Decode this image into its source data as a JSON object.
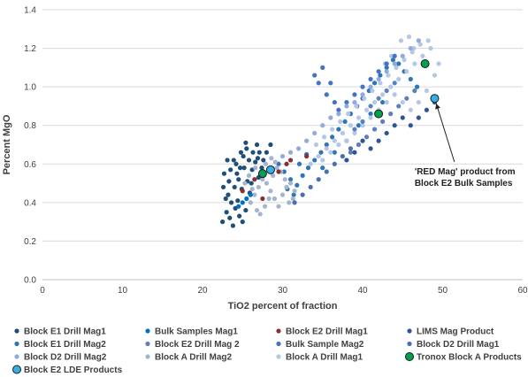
{
  "chart_data": {
    "type": "scatter",
    "title": "",
    "xlabel": "TiO2 percent of fraction",
    "ylabel": "Percent MgO",
    "xlim": [
      0,
      60
    ],
    "ylim": [
      0,
      1.4
    ],
    "x_ticks": [
      0,
      10,
      20,
      30,
      40,
      50,
      60
    ],
    "y_ticks": [
      0.0,
      0.2,
      0.4,
      0.6,
      0.8,
      1.0,
      1.2,
      1.4
    ],
    "x_tick_labels": [
      "0",
      "10",
      "20",
      "30",
      "40",
      "50",
      "60"
    ],
    "y_tick_labels": [
      "0.0",
      "0.2",
      "0.4",
      "0.6",
      "0.8",
      "1.0",
      "1.2",
      "1.4"
    ],
    "grid": "horizontal",
    "legend_position": "bottom",
    "annotation": {
      "lines": [
        "'RED Mag' product from",
        "Block E2 Bulk Samples"
      ],
      "target": {
        "x": 49,
        "y": 0.94
      },
      "text_at": {
        "x": 46.5,
        "y": 0.56
      }
    },
    "series": [
      {
        "name": "Block E1 Drill Mag1",
        "color": "#1f4e79",
        "size": 2.6,
        "outline": false,
        "points": [
          [
            22.5,
            0.3
          ],
          [
            23.0,
            0.35
          ],
          [
            23.4,
            0.32
          ],
          [
            23.8,
            0.28
          ],
          [
            24.1,
            0.37
          ],
          [
            24.6,
            0.33
          ],
          [
            25.0,
            0.3
          ],
          [
            25.4,
            0.36
          ],
          [
            23.2,
            0.44
          ],
          [
            24.0,
            0.48
          ],
          [
            24.5,
            0.52
          ],
          [
            25.2,
            0.58
          ],
          [
            25.8,
            0.62
          ],
          [
            26.3,
            0.66
          ],
          [
            26.8,
            0.7
          ],
          [
            27.1,
            0.66
          ],
          [
            27.6,
            0.62
          ],
          [
            26.2,
            0.57
          ],
          [
            25.6,
            0.51
          ],
          [
            24.9,
            0.47
          ],
          [
            24.3,
            0.55
          ],
          [
            23.9,
            0.62
          ],
          [
            24.8,
            0.66
          ],
          [
            25.4,
            0.71
          ],
          [
            26.6,
            0.61
          ],
          [
            27.4,
            0.58
          ],
          [
            28.0,
            0.66
          ],
          [
            28.5,
            0.7
          ],
          [
            23.6,
            0.4
          ],
          [
            22.9,
            0.42
          ],
          [
            24.4,
            0.41
          ],
          [
            25.9,
            0.45
          ],
          [
            26.1,
            0.5
          ],
          [
            27.0,
            0.53
          ],
          [
            25.1,
            0.64
          ],
          [
            24.2,
            0.6
          ],
          [
            23.5,
            0.57
          ],
          [
            23.1,
            0.62
          ],
          [
            22.7,
            0.55
          ],
          [
            24.7,
            0.58
          ],
          [
            26.9,
            0.63
          ],
          [
            25.5,
            0.68
          ],
          [
            23.3,
            0.51
          ],
          [
            22.6,
            0.48
          ]
        ]
      },
      {
        "name": "Block E1 Drill Mag2",
        "color": "#2e75b6",
        "size": 2.6,
        "outline": false,
        "points": [
          [
            29.5,
            0.6
          ],
          [
            30.2,
            0.56
          ],
          [
            31.0,
            0.52
          ],
          [
            31.8,
            0.49
          ],
          [
            32.5,
            0.54
          ],
          [
            33.2,
            0.58
          ],
          [
            34.0,
            0.62
          ],
          [
            34.8,
            0.66
          ],
          [
            35.5,
            0.7
          ],
          [
            36.2,
            0.74
          ],
          [
            37.0,
            0.78
          ],
          [
            37.8,
            0.82
          ],
          [
            38.5,
            0.86
          ],
          [
            39.3,
            0.9
          ],
          [
            40.0,
            0.94
          ],
          [
            40.8,
            0.98
          ],
          [
            41.5,
            1.02
          ],
          [
            42.2,
            1.06
          ],
          [
            43.0,
            1.1
          ],
          [
            43.8,
            1.14
          ],
          [
            44.5,
            1.12
          ],
          [
            45.2,
            1.08
          ],
          [
            46.0,
            1.04
          ],
          [
            46.8,
            1.0
          ],
          [
            30.6,
            0.47
          ],
          [
            31.4,
            0.44
          ],
          [
            32.1,
            0.6
          ],
          [
            33.0,
            0.65
          ],
          [
            35.0,
            0.58
          ],
          [
            36.5,
            0.66
          ],
          [
            38.0,
            0.72
          ],
          [
            39.5,
            0.8
          ],
          [
            41.0,
            0.86
          ],
          [
            42.5,
            0.92
          ]
        ]
      },
      {
        "name": "Block A Drill Mag2",
        "color": "#a5b4d0",
        "size": 2.6,
        "outline": false,
        "points": [
          [
            26.0,
            0.4
          ],
          [
            26.5,
            0.44
          ],
          [
            27.0,
            0.48
          ],
          [
            27.5,
            0.52
          ],
          [
            28.0,
            0.5
          ],
          [
            28.5,
            0.46
          ],
          [
            29.0,
            0.42
          ],
          [
            29.5,
            0.38
          ],
          [
            30.0,
            0.44
          ],
          [
            30.5,
            0.48
          ],
          [
            31.0,
            0.5
          ],
          [
            31.5,
            0.46
          ],
          [
            26.8,
            0.36
          ],
          [
            27.2,
            0.34
          ],
          [
            27.8,
            0.38
          ],
          [
            28.3,
            0.42
          ],
          [
            28.8,
            0.54
          ],
          [
            29.3,
            0.58
          ],
          [
            29.8,
            0.56
          ],
          [
            30.3,
            0.52
          ],
          [
            27.4,
            0.56
          ],
          [
            26.6,
            0.58
          ],
          [
            25.8,
            0.54
          ],
          [
            25.3,
            0.5
          ],
          [
            26.2,
            0.47
          ],
          [
            29.1,
            0.61
          ],
          [
            28.6,
            0.63
          ],
          [
            27.9,
            0.6
          ],
          [
            30.8,
            0.4
          ],
          [
            31.3,
            0.42
          ]
        ]
      },
      {
        "name": "Block A Drill Mag1",
        "color": "#b4c7e7",
        "size": 2.6,
        "outline": false,
        "points": [
          [
            33.5,
            0.6
          ],
          [
            34.5,
            0.64
          ],
          [
            35.5,
            0.68
          ],
          [
            36.5,
            0.72
          ],
          [
            37.5,
            0.76
          ],
          [
            38.5,
            0.8
          ],
          [
            39.5,
            0.84
          ],
          [
            40.5,
            0.88
          ],
          [
            41.5,
            0.92
          ],
          [
            42.5,
            0.96
          ],
          [
            43.5,
            1.0
          ],
          [
            44.5,
            1.04
          ],
          [
            45.5,
            1.08
          ],
          [
            46.5,
            1.12
          ],
          [
            47.5,
            1.16
          ],
          [
            48.5,
            1.2
          ],
          [
            34.2,
            0.7
          ],
          [
            35.2,
            0.74
          ],
          [
            36.2,
            0.78
          ],
          [
            37.2,
            0.82
          ],
          [
            38.2,
            0.86
          ],
          [
            39.2,
            0.9
          ],
          [
            40.2,
            0.94
          ],
          [
            41.2,
            0.98
          ],
          [
            42.2,
            1.02
          ],
          [
            43.2,
            1.06
          ],
          [
            44.2,
            1.1
          ],
          [
            45.2,
            1.14
          ],
          [
            46.2,
            1.18
          ],
          [
            47.2,
            1.22
          ],
          [
            48.2,
            1.24
          ],
          [
            44.0,
            0.96
          ],
          [
            45.0,
            0.92
          ],
          [
            46.0,
            0.88
          ],
          [
            47.0,
            0.92
          ],
          [
            48.0,
            0.98
          ],
          [
            49.0,
            1.06
          ],
          [
            49.5,
            1.12
          ],
          [
            40.0,
            0.8
          ],
          [
            41.0,
            0.84
          ],
          [
            42.0,
            0.88
          ],
          [
            43.0,
            0.92
          ],
          [
            39.0,
            0.76
          ],
          [
            38.0,
            0.72
          ],
          [
            37.0,
            0.7
          ],
          [
            36.0,
            0.66
          ],
          [
            35.0,
            0.62
          ],
          [
            44.8,
            1.24
          ],
          [
            45.8,
            1.26
          ],
          [
            46.4,
            1.2
          ],
          [
            43.6,
            1.16
          ],
          [
            42.8,
            1.12
          ]
        ]
      },
      {
        "name": "Bulk Samples Mag1",
        "color": "#0070c0",
        "size": 2.6,
        "outline": false,
        "points": [
          [
            24.5,
            0.38
          ],
          [
            25.0,
            0.4
          ],
          [
            25.5,
            0.42
          ],
          [
            26.0,
            0.44
          ]
        ]
      },
      {
        "name": "Block E2 Drill Mag 2",
        "color": "#5b7fbf",
        "size": 2.6,
        "outline": false,
        "points": [
          [
            38.5,
            0.66
          ],
          [
            39.5,
            0.7
          ],
          [
            40.5,
            0.74
          ],
          [
            41.5,
            0.78
          ],
          [
            42.5,
            0.82
          ],
          [
            43.5,
            0.86
          ],
          [
            44.5,
            0.9
          ],
          [
            45.5,
            0.94
          ],
          [
            46.5,
            0.98
          ],
          [
            39.0,
            0.78
          ],
          [
            40.0,
            0.82
          ],
          [
            41.0,
            0.9
          ],
          [
            42.0,
            0.94
          ],
          [
            43.0,
            0.98
          ],
          [
            44.0,
            1.02
          ]
        ]
      },
      {
        "name": "Block A Drill Mag1",
        "color": "#b4c7e7",
        "size": 2.6,
        "outline": false,
        "points": []
      },
      {
        "name": "Block E2 Drill Mag1",
        "color": "#8b2e2e",
        "size": 2.6,
        "outline": false,
        "points": [
          [
            25.0,
            0.46
          ],
          [
            26.5,
            0.52
          ],
          [
            27.5,
            0.42
          ],
          [
            29.5,
            0.56
          ],
          [
            30.5,
            0.6
          ],
          [
            31.0,
            0.62
          ],
          [
            33.0,
            0.64
          ]
        ]
      },
      {
        "name": "Bulk Sample Mag2",
        "color": "#4472c4",
        "size": 2.6,
        "outline": false,
        "points": [
          [
            37.0,
            0.88
          ],
          [
            38.0,
            0.92
          ],
          [
            39.0,
            0.96
          ],
          [
            40.0,
            1.0
          ],
          [
            41.0,
            1.04
          ],
          [
            42.0,
            1.08
          ],
          [
            43.0,
            1.12
          ],
          [
            44.0,
            1.16
          ],
          [
            36.0,
            1.02
          ],
          [
            35.5,
            0.96
          ],
          [
            36.5,
            0.92
          ],
          [
            34.0,
            1.06
          ],
          [
            34.5,
            1.02
          ],
          [
            35.0,
            1.1
          ]
        ]
      },
      {
        "name": "LIMS Mag Product",
        "color": "#2f5597",
        "size": 2.6,
        "outline": false,
        "points": [
          [
            40.0,
            0.72
          ],
          [
            41.0,
            0.68
          ],
          [
            42.0,
            0.72
          ],
          [
            43.0,
            0.76
          ],
          [
            44.0,
            0.8
          ],
          [
            45.0,
            0.84
          ],
          [
            46.0,
            0.8
          ],
          [
            47.0,
            0.84
          ],
          [
            48.0,
            0.88
          ],
          [
            49.0,
            0.92
          ],
          [
            38.0,
            0.62
          ],
          [
            39.0,
            0.66
          ]
        ]
      },
      {
        "name": "Block D2 Drill Mag2",
        "color": "#8faadc",
        "size": 2.6,
        "outline": false,
        "points": [
          [
            32.0,
            0.68
          ],
          [
            33.0,
            0.72
          ],
          [
            34.0,
            0.76
          ],
          [
            35.0,
            0.8
          ],
          [
            36.0,
            0.84
          ],
          [
            37.0,
            0.86
          ],
          [
            38.0,
            0.9
          ],
          [
            39.0,
            0.92
          ],
          [
            40.0,
            0.96
          ],
          [
            41.0,
            1.0
          ],
          [
            42.0,
            1.04
          ],
          [
            43.0,
            1.08
          ],
          [
            44.0,
            1.12
          ],
          [
            45.0,
            1.16
          ],
          [
            46.0,
            1.2
          ],
          [
            47.0,
            1.24
          ],
          [
            30.0,
            0.64
          ],
          [
            31.0,
            0.66
          ]
        ]
      },
      {
        "name": "Block D2 Drill Mag1",
        "color": "#4a6fb0",
        "size": 2.6,
        "outline": false,
        "points": [
          [
            31.5,
            0.4
          ],
          [
            32.5,
            0.44
          ],
          [
            33.5,
            0.48
          ],
          [
            34.5,
            0.52
          ],
          [
            35.5,
            0.56
          ],
          [
            36.5,
            0.6
          ],
          [
            37.5,
            0.64
          ],
          [
            38.5,
            0.68
          ]
        ]
      },
      {
        "name": "Tronox Block A Products",
        "color": "#00a050",
        "size": 4.5,
        "outline": true,
        "points": [
          [
            27.5,
            0.55
          ],
          [
            42.0,
            0.86
          ],
          [
            47.8,
            1.12
          ]
        ]
      },
      {
        "name": "Block E2 LDE Products",
        "color": "#33b0e8",
        "size": 4.5,
        "outline": true,
        "points": [
          [
            28.5,
            0.57
          ],
          [
            49.0,
            0.94
          ]
        ]
      }
    ],
    "legend": [
      {
        "label": "Block E1 Drill Mag1",
        "color": "#1f4e79",
        "outline": false
      },
      {
        "label": "Bulk Samples Mag1",
        "color": "#0070c0",
        "outline": false
      },
      {
        "label": "Block E2 Drill Mag1",
        "color": "#8b2e2e",
        "outline": false
      },
      {
        "label": "LIMS Mag Product",
        "color": "#2f5597",
        "outline": false
      },
      {
        "label": "Block E1 Drill Mag2",
        "color": "#2e75b6",
        "outline": false
      },
      {
        "label": "Block E2 Drill Mag 2",
        "color": "#5b7fbf",
        "outline": false
      },
      {
        "label": "Bulk Sample Mag2",
        "color": "#4472c4",
        "outline": false
      },
      {
        "label": "Block D2 Drill Mag1",
        "color": "#4a6fb0",
        "outline": false
      },
      {
        "label": "Block D2 Drill Mag2",
        "color": "#8faadc",
        "outline": false
      },
      {
        "label": "Block A Drill Mag2",
        "color": "#a5b4d0",
        "outline": false
      },
      {
        "label": "Block A Drill Mag1",
        "color": "#b4c7e7",
        "outline": false
      },
      {
        "label": "Tronox Block A Products",
        "color": "#00a050",
        "outline": true
      },
      {
        "label": "Block E2 LDE Products",
        "color": "#33b0e8",
        "outline": true
      }
    ]
  }
}
